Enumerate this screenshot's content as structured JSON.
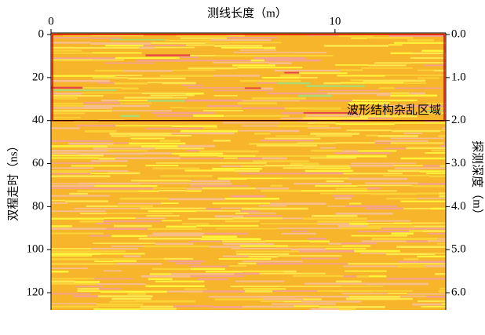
{
  "chart_data": {
    "type": "radargram",
    "x_label": "测线长度（m）",
    "y_label": "双程走时（ns）",
    "y2_label": "探测深度（m）",
    "xlim": [
      0,
      13.9
    ],
    "xticks": [
      0,
      10
    ],
    "ylim": [
      0,
      128
    ],
    "yticks": [
      0,
      20,
      40,
      60,
      80,
      100,
      120
    ],
    "y2lim": [
      0,
      6.4
    ],
    "y2ticks": [
      {
        "value": 0,
        "label": "0.0"
      },
      {
        "value": 1,
        "label": "1.0"
      },
      {
        "value": 2,
        "label": "2.0"
      },
      {
        "value": 3,
        "label": "3.0"
      },
      {
        "value": 4,
        "label": "4.0"
      },
      {
        "value": 5,
        "label": "5.0"
      },
      {
        "value": 6,
        "label": "6.0"
      }
    ],
    "annotation": {
      "text": "波形结构杂乱区域",
      "y_range": [
        0,
        40
      ],
      "color": "#e00000"
    }
  }
}
